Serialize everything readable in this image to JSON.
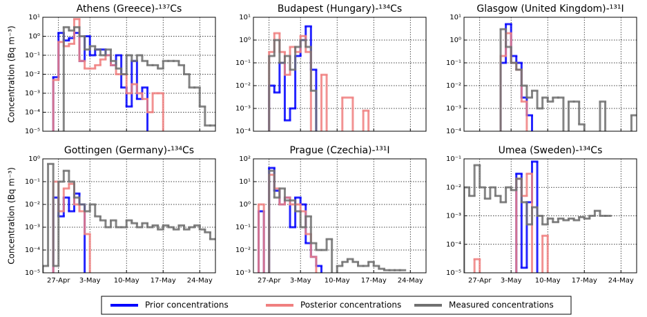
{
  "chart_data": [
    {
      "type": "step",
      "title": "Athens (Greece)-¹³⁷Cs",
      "ylabel": "Concentration (Bq m⁻³)",
      "log_y": true,
      "grid": true,
      "xlim": [
        -6,
        27
      ],
      "xticks": [
        -3,
        3,
        10,
        17,
        24
      ],
      "ylim": [
        1e-05,
        10
      ],
      "yticks": [
        {
          "value": 1e-05,
          "label": "10⁻⁵"
        },
        {
          "value": 0.0001,
          "label": "10⁻⁴"
        },
        {
          "value": 0.001,
          "label": "10⁻³"
        },
        {
          "value": 0.01,
          "label": "10⁻²"
        },
        {
          "value": 0.1,
          "label": "10⁻¹"
        },
        {
          "value": 1,
          "label": "10⁰"
        },
        {
          "value": 10,
          "label": "10¹"
        }
      ],
      "series": [
        {
          "name": "Prior concentrations",
          "color": "#0000ff",
          "x": [
            -4,
            -3,
            -2,
            -1,
            0,
            1,
            2,
            3,
            4,
            5,
            6,
            7,
            8,
            9,
            10,
            11,
            12,
            13,
            14
          ],
          "values": [
            0.007,
            1.5,
            0.6,
            0.8,
            1.5,
            0.05,
            1,
            0.1,
            0.2,
            0.2,
            0.1,
            0.03,
            0.1,
            0.002,
            0.0002,
            0.05,
            0.0005,
            0.002,
            null
          ]
        },
        {
          "name": "Posterior concentrations",
          "color": "#f08080",
          "x": [
            -4,
            -3,
            -2,
            -1,
            0,
            1,
            2,
            3,
            4,
            5,
            6,
            7,
            8,
            9,
            10,
            11,
            12,
            13,
            14,
            15,
            16,
            17
          ],
          "values": [
            0.005,
            0.5,
            0.3,
            0.4,
            8,
            0.05,
            0.02,
            0.02,
            0.03,
            0.06,
            0.1,
            0.03,
            0.01,
            0.01,
            0.001,
            0.003,
            0.001,
            0.0005,
            0.0001,
            0.001,
            0.001,
            null
          ]
        },
        {
          "name": "Measured concentrations",
          "color": "#707070",
          "x": [
            -2,
            -1,
            0,
            1,
            2,
            3,
            4,
            5,
            6,
            7,
            8,
            9,
            10,
            11,
            12,
            13,
            14,
            15,
            16,
            17,
            18,
            19,
            20,
            21,
            22,
            23,
            24,
            25,
            26
          ],
          "values": [
            3,
            2,
            3,
            1,
            0.2,
            0.3,
            0.2,
            0.1,
            0.2,
            0.05,
            0.02,
            0.01,
            0.1,
            0.05,
            0.1,
            0.05,
            0.03,
            0.03,
            0.02,
            0.05,
            0.05,
            0.05,
            0.03,
            0.01,
            0.002,
            0.002,
            0.0002,
            2e-05,
            2e-05
          ]
        }
      ]
    },
    {
      "type": "step",
      "title": "Budapest (Hungary)-¹³⁴Cs",
      "log_y": true,
      "grid": true,
      "xlim": [
        -6,
        27
      ],
      "xticks": [
        -3,
        3,
        10,
        17,
        24
      ],
      "ylim": [
        0.0001,
        10
      ],
      "yticks": [
        {
          "value": 0.0001,
          "label": "10⁻⁴"
        },
        {
          "value": 0.001,
          "label": "10⁻³"
        },
        {
          "value": 0.01,
          "label": "10⁻²"
        },
        {
          "value": 0.1,
          "label": "10⁻¹"
        },
        {
          "value": 1,
          "label": "10⁰"
        },
        {
          "value": 10,
          "label": "10¹"
        }
      ],
      "series": [
        {
          "color": "#0000ff",
          "x": [
            -3,
            -2,
            -1,
            0,
            1,
            2,
            3,
            4,
            5,
            6
          ],
          "values": [
            0.01,
            0.005,
            0.1,
            0.0003,
            0.001,
            0.2,
            1,
            4,
            0.05,
            null
          ]
        },
        {
          "color": "#f08080",
          "x": [
            -3,
            -2,
            -1,
            0,
            1,
            2,
            3,
            4,
            5,
            7,
            8,
            11,
            13,
            15,
            16
          ],
          "values": [
            0.3,
            2,
            0.3,
            0.03,
            0.5,
            0.3,
            1.5,
            0.3,
            null,
            0.03,
            null,
            0.003,
            null,
            0.0008,
            null
          ]
        },
        {
          "color": "#707070",
          "x": [
            -3,
            -2,
            -1,
            0,
            1,
            2,
            3,
            4,
            5,
            6
          ],
          "values": [
            0.2,
            1,
            0.1,
            0.2,
            0.05,
            0.5,
            1,
            0.5,
            0.006,
            null
          ]
        }
      ]
    },
    {
      "type": "step",
      "title": "Glasgow (United Kingdom)-¹³¹I",
      "log_y": true,
      "grid": true,
      "xlim": [
        -6,
        27
      ],
      "xticks": [
        -3,
        3,
        10,
        17,
        24
      ],
      "ylim": [
        0.0001,
        10
      ],
      "yticks": [
        {
          "value": 0.0001,
          "label": "10⁻⁴"
        },
        {
          "value": 0.001,
          "label": "10⁻³"
        },
        {
          "value": 0.01,
          "label": "10⁻²"
        },
        {
          "value": 0.1,
          "label": "10⁻¹"
        },
        {
          "value": 1,
          "label": "10⁰"
        },
        {
          "value": 10,
          "label": "10¹"
        }
      ],
      "series": [
        {
          "color": "#0000ff",
          "x": [
            1,
            2,
            3,
            4,
            5,
            6,
            7
          ],
          "values": [
            0.1,
            5,
            0.2,
            0.1,
            0.003,
            0.0005,
            null
          ]
        },
        {
          "color": "#f08080",
          "x": [
            1,
            2,
            3,
            4,
            5,
            6
          ],
          "values": [
            0.2,
            2,
            0.1,
            0.05,
            0.002,
            null
          ]
        },
        {
          "color": "#707070",
          "x": [
            1,
            2,
            3,
            4,
            5,
            6,
            7,
            8,
            9,
            10,
            11,
            12,
            13,
            14,
            15,
            16,
            17,
            20,
            21,
            26
          ],
          "values": [
            3,
            0.5,
            0.1,
            0.05,
            0.01,
            0.003,
            0.006,
            0.001,
            0.003,
            0.002,
            0.003,
            0.003,
            5e-05,
            0.002,
            0.002,
            0.0002,
            null,
            0.002,
            null,
            0.0005
          ]
        }
      ]
    },
    {
      "type": "step",
      "title": "Gottingen (Germany)-¹³⁴Cs",
      "ylabel": "Concentration (Bq m⁻³)",
      "log_y": true,
      "grid": true,
      "xlim": [
        -6,
        27
      ],
      "xticks": [
        {
          "value": -3,
          "label": "27-Apr"
        },
        {
          "value": 3,
          "label": "3-May"
        },
        {
          "value": 10,
          "label": "10-May"
        },
        {
          "value": 17,
          "label": "17-May"
        },
        {
          "value": 24,
          "label": "24-May"
        }
      ],
      "ylim": [
        1e-05,
        1
      ],
      "yticks": [
        {
          "value": 1e-05,
          "label": "10⁻⁵"
        },
        {
          "value": 0.0001,
          "label": "10⁻⁴"
        },
        {
          "value": 0.001,
          "label": "10⁻³"
        },
        {
          "value": 0.01,
          "label": "10⁻²"
        },
        {
          "value": 0.1,
          "label": "10⁻¹"
        },
        {
          "value": 1,
          "label": "10⁰"
        }
      ],
      "series": [
        {
          "color": "#0000ff",
          "x": [
            -4,
            -3,
            -2,
            -1,
            0,
            1,
            2
          ],
          "values": [
            0.02,
            0.003,
            0.02,
            0.005,
            0.03,
            0.01,
            null
          ]
        },
        {
          "color": "#f08080",
          "x": [
            -4,
            -3,
            -2,
            -1,
            0,
            1,
            2,
            3
          ],
          "values": [
            0.1,
            0.005,
            0.05,
            0.08,
            0.01,
            0.005,
            0.0005,
            null
          ]
        },
        {
          "color": "#707070",
          "x": [
            -6,
            -5,
            -4,
            -3,
            -2,
            -1,
            0,
            1,
            2,
            3,
            4,
            5,
            6,
            7,
            8,
            9,
            10,
            11,
            12,
            13,
            14,
            15,
            16,
            17,
            18,
            19,
            20,
            21,
            22,
            23,
            24,
            25,
            26
          ],
          "values": [
            2e-05,
            0.6,
            2e-05,
            0.1,
            0.3,
            0.1,
            0.02,
            0.01,
            0.005,
            0.01,
            0.003,
            0.002,
            0.001,
            0.002,
            0.001,
            0.001,
            0.002,
            0.0015,
            0.001,
            0.0015,
            0.001,
            0.0012,
            0.0008,
            0.0012,
            0.001,
            0.0008,
            0.0012,
            0.0008,
            0.001,
            0.0012,
            0.0008,
            0.0006,
            0.0003
          ]
        }
      ]
    },
    {
      "type": "step",
      "title": "Prague (Czechia)-¹³¹I",
      "log_y": true,
      "grid": true,
      "xlim": [
        -6,
        27
      ],
      "xticks": [
        {
          "value": -3,
          "label": "27-Apr"
        },
        {
          "value": 3,
          "label": "3-May"
        },
        {
          "value": 10,
          "label": "10-May"
        },
        {
          "value": 17,
          "label": "17-May"
        },
        {
          "value": 24,
          "label": "24-May"
        }
      ],
      "ylim": [
        0.001,
        100
      ],
      "yticks": [
        {
          "value": 0.001,
          "label": "10⁻³"
        },
        {
          "value": 0.01,
          "label": "10⁻²"
        },
        {
          "value": 0.1,
          "label": "10⁻¹"
        },
        {
          "value": 1,
          "label": "10⁰"
        },
        {
          "value": 10,
          "label": "10¹"
        },
        {
          "value": 100,
          "label": "10²"
        }
      ],
      "series": [
        {
          "color": "#0000ff",
          "x": [
            -5,
            -4,
            -3,
            -2,
            -1,
            0,
            1,
            2,
            3,
            4,
            5,
            6,
            7
          ],
          "values": [
            0.5,
            null,
            40,
            4,
            1,
            2,
            0.1,
            2,
            1,
            0.02,
            0.005,
            0.002,
            null
          ]
        },
        {
          "color": "#f08080",
          "x": [
            -5,
            -4,
            -3,
            -2,
            -1,
            0,
            1,
            2,
            3,
            4,
            5,
            6
          ],
          "values": [
            1,
            null,
            20,
            5,
            1,
            2,
            1,
            1,
            0.5,
            0.05,
            0.005,
            null
          ]
        },
        {
          "color": "#707070",
          "x": [
            -3,
            -2,
            -1,
            0,
            1,
            2,
            3,
            4,
            5,
            6,
            7,
            8,
            9,
            10,
            11,
            12,
            13,
            14,
            15,
            16,
            17,
            18,
            19,
            20,
            21,
            22
          ],
          "values": [
            30,
            2,
            5,
            1.5,
            1.5,
            0.5,
            0.1,
            0.3,
            0.02,
            0.01,
            0.01,
            0.03,
            0.0005,
            0.002,
            0.003,
            0.004,
            0.003,
            0.002,
            0.002,
            0.003,
            0.002,
            0.0015,
            0.0013,
            0.0013,
            0.0013,
            0.0013
          ]
        }
      ]
    },
    {
      "type": "step",
      "title": "Umea (Sweden)-¹³⁴Cs",
      "log_y": true,
      "grid": true,
      "xlim": [
        -6,
        27
      ],
      "xticks": [
        {
          "value": -3,
          "label": "27-Apr"
        },
        {
          "value": 3,
          "label": "3-May"
        },
        {
          "value": 10,
          "label": "10-May"
        },
        {
          "value": 17,
          "label": "17-May"
        },
        {
          "value": 24,
          "label": "24-May"
        }
      ],
      "ylim": [
        1e-05,
        0.1
      ],
      "yticks": [
        {
          "value": 1e-05,
          "label": "10⁻⁵"
        },
        {
          "value": 0.0001,
          "label": "10⁻⁴"
        },
        {
          "value": 0.001,
          "label": "10⁻³"
        },
        {
          "value": 0.01,
          "label": "10⁻²"
        },
        {
          "value": 0.1,
          "label": "10⁻¹"
        }
      ],
      "series": [
        {
          "color": "#0000ff",
          "x": [
            4,
            5,
            6,
            7,
            8
          ],
          "values": [
            0.03,
            1.5e-05,
            0.003,
            0.08,
            null
          ]
        },
        {
          "color": "#f08080",
          "x": [
            -4,
            -3,
            4,
            5,
            6,
            7,
            9,
            10
          ],
          "values": [
            3e-05,
            null,
            0.02,
            0.005,
            0.03,
            null,
            0.0002,
            null
          ]
        },
        {
          "color": "#707070",
          "x": [
            -6,
            -5,
            -4,
            -3,
            -2,
            -1,
            0,
            1,
            2,
            3,
            4,
            5,
            6,
            7,
            8,
            9,
            10,
            11,
            12,
            13,
            14,
            15,
            16,
            17,
            18,
            19,
            20,
            21
          ],
          "values": [
            0.01,
            0.005,
            0.06,
            0.01,
            0.004,
            0.01,
            0.005,
            0.003,
            0.01,
            0.008,
            0.02,
            0.003,
            0.0005,
            0.002,
            0.001,
            0.0005,
            0.0008,
            0.0006,
            0.0008,
            0.0007,
            0.0008,
            0.0007,
            0.0009,
            0.0008,
            0.001,
            0.0015,
            0.001,
            0.001
          ]
        }
      ]
    }
  ]
}
